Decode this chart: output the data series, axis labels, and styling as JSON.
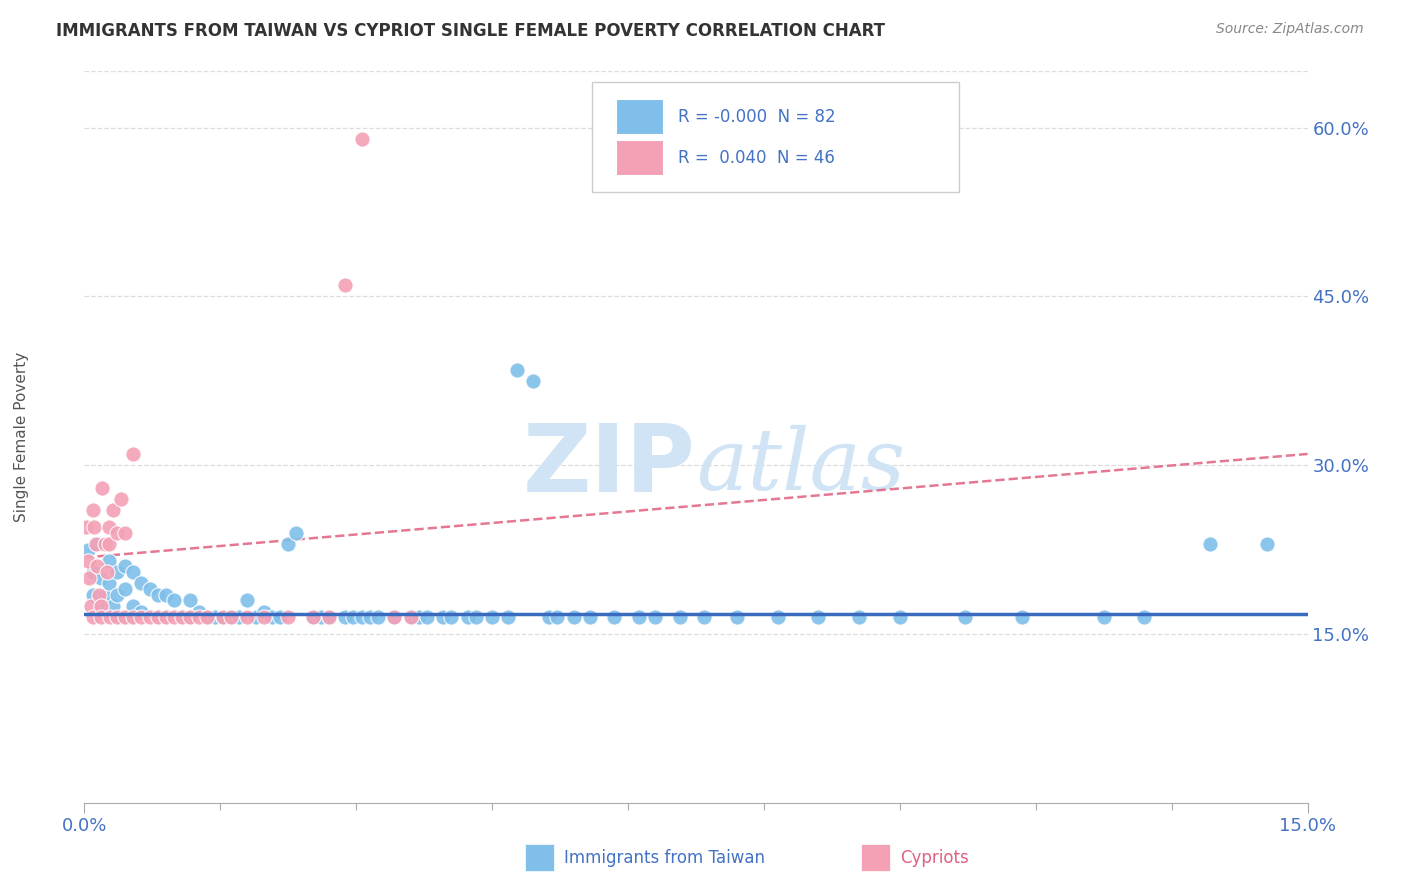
{
  "title": "IMMIGRANTS FROM TAIWAN VS CYPRIOT SINGLE FEMALE POVERTY CORRELATION CHART",
  "source": "Source: ZipAtlas.com",
  "ylabel": "Single Female Poverty",
  "x_label_blue": "Immigrants from Taiwan",
  "x_label_pink": "Cypriots",
  "xlim": [
    0.0,
    0.15
  ],
  "ylim": [
    0.0,
    0.65
  ],
  "yticks": [
    0.15,
    0.3,
    0.45,
    0.6
  ],
  "ytick_labels": [
    "15.0%",
    "30.0%",
    "45.0%",
    "60.0%"
  ],
  "legend_r_blue": "-0.000",
  "legend_n_blue": "82",
  "legend_r_pink": "0.040",
  "legend_n_pink": "46",
  "blue_color": "#7fbfea",
  "pink_color": "#f4a0b5",
  "blue_line_color": "#3a6bbf",
  "pink_line_color": "#e06080",
  "title_color": "#333333",
  "axis_tick_color": "#4472c4",
  "legend_text_color": "#4472c4",
  "watermark_color": "#d0e4f5",
  "background_color": "#ffffff",
  "grid_color": "#dddddd",
  "blue_trend_y0": 0.168,
  "blue_trend_y1": 0.168,
  "pink_trend_y0": 0.218,
  "pink_trend_y1": 0.31,
  "blue_scatter_x": [
    0.0005,
    0.001,
    0.001,
    0.0015,
    0.002,
    0.0025,
    0.002,
    0.003,
    0.003,
    0.0035,
    0.004,
    0.004,
    0.0045,
    0.005,
    0.005,
    0.0055,
    0.006,
    0.006,
    0.007,
    0.007,
    0.008,
    0.009,
    0.009,
    0.01,
    0.01,
    0.011,
    0.012,
    0.013,
    0.013,
    0.014,
    0.015,
    0.016,
    0.017,
    0.018,
    0.019,
    0.02,
    0.021,
    0.022,
    0.023,
    0.024,
    0.025,
    0.026,
    0.028,
    0.029,
    0.03,
    0.032,
    0.033,
    0.034,
    0.035,
    0.036,
    0.038,
    0.04,
    0.041,
    0.042,
    0.044,
    0.045,
    0.047,
    0.048,
    0.05,
    0.052,
    0.053,
    0.055,
    0.057,
    0.058,
    0.06,
    0.062,
    0.065,
    0.068,
    0.07,
    0.073,
    0.076,
    0.08,
    0.085,
    0.09,
    0.095,
    0.1,
    0.108,
    0.115,
    0.125,
    0.13,
    0.138,
    0.145
  ],
  "blue_scatter_y": [
    0.225,
    0.205,
    0.185,
    0.23,
    0.2,
    0.185,
    0.175,
    0.215,
    0.195,
    0.175,
    0.205,
    0.185,
    0.165,
    0.21,
    0.19,
    0.165,
    0.205,
    0.175,
    0.195,
    0.17,
    0.19,
    0.185,
    0.165,
    0.185,
    0.165,
    0.18,
    0.165,
    0.18,
    0.165,
    0.17,
    0.165,
    0.165,
    0.165,
    0.165,
    0.165,
    0.18,
    0.165,
    0.17,
    0.165,
    0.165,
    0.23,
    0.24,
    0.165,
    0.165,
    0.165,
    0.165,
    0.165,
    0.165,
    0.165,
    0.165,
    0.165,
    0.165,
    0.165,
    0.165,
    0.165,
    0.165,
    0.165,
    0.165,
    0.165,
    0.165,
    0.385,
    0.375,
    0.165,
    0.165,
    0.165,
    0.165,
    0.165,
    0.165,
    0.165,
    0.165,
    0.165,
    0.165,
    0.165,
    0.165,
    0.165,
    0.165,
    0.165,
    0.165,
    0.165,
    0.165,
    0.23,
    0.23
  ],
  "pink_scatter_x": [
    0.0002,
    0.0004,
    0.0006,
    0.0008,
    0.001,
    0.001,
    0.0012,
    0.0014,
    0.0016,
    0.0018,
    0.002,
    0.002,
    0.0022,
    0.0025,
    0.0028,
    0.003,
    0.003,
    0.0032,
    0.0035,
    0.004,
    0.004,
    0.0045,
    0.005,
    0.005,
    0.006,
    0.006,
    0.007,
    0.008,
    0.009,
    0.01,
    0.011,
    0.012,
    0.013,
    0.014,
    0.015,
    0.017,
    0.018,
    0.02,
    0.022,
    0.025,
    0.028,
    0.03,
    0.032,
    0.034,
    0.038,
    0.04
  ],
  "pink_scatter_y": [
    0.245,
    0.215,
    0.2,
    0.175,
    0.165,
    0.26,
    0.245,
    0.23,
    0.21,
    0.185,
    0.175,
    0.165,
    0.28,
    0.23,
    0.205,
    0.245,
    0.23,
    0.165,
    0.26,
    0.24,
    0.165,
    0.27,
    0.24,
    0.165,
    0.31,
    0.165,
    0.165,
    0.165,
    0.165,
    0.165,
    0.165,
    0.165,
    0.165,
    0.165,
    0.165,
    0.165,
    0.165,
    0.165,
    0.165,
    0.165,
    0.165,
    0.165,
    0.46,
    0.59,
    0.165,
    0.165
  ]
}
